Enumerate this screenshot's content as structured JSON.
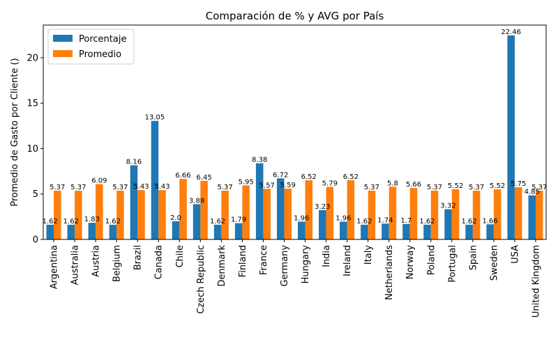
{
  "chart_data": {
    "type": "bar",
    "title": "Comparación de % y AVG por País",
    "xlabel": "",
    "ylabel": "Promedio de Gasto por Cliente ()",
    "ylim": [
      0,
      23.6
    ],
    "yticks": [
      0,
      5,
      10,
      15,
      20
    ],
    "grid": false,
    "legend_position": "top-left",
    "categories": [
      "Argentina",
      "Australia",
      "Austria",
      "Belgium",
      "Brazil",
      "Canada",
      "Chile",
      "Czech Republic",
      "Denmark",
      "Finland",
      "France",
      "Germany",
      "Hungary",
      "India",
      "Ireland",
      "Italy",
      "Netherlands",
      "Norway",
      "Poland",
      "Portugal",
      "Spain",
      "Sweden",
      "USA",
      "United Kingdom"
    ],
    "series": [
      {
        "name": "Porcentaje",
        "color": "#1f77b4",
        "values": [
          1.62,
          1.62,
          1.83,
          1.62,
          8.16,
          13.05,
          2.0,
          3.88,
          1.62,
          1.79,
          8.38,
          6.72,
          1.96,
          3.23,
          1.96,
          1.62,
          1.74,
          1.7,
          1.62,
          3.32,
          1.62,
          1.66,
          22.46,
          4.85
        ],
        "labels": [
          "1.62",
          "1.62",
          "1.83",
          "1.62",
          "8.16",
          "13.05",
          "2.0",
          "3.88",
          "1.62",
          "1.79",
          "8.38",
          "6.72",
          "1.96",
          "3.23",
          "1.96",
          "1.62",
          "1.74",
          "1.7",
          "1.62",
          "3.32",
          "1.62",
          "1.66",
          "22.46",
          "4.85"
        ]
      },
      {
        "name": "Promedio",
        "color": "#ff7f0e",
        "values": [
          5.37,
          5.37,
          6.09,
          5.37,
          5.43,
          5.43,
          6.66,
          6.45,
          5.37,
          5.95,
          5.57,
          5.59,
          6.52,
          5.79,
          6.52,
          5.37,
          5.8,
          5.66,
          5.37,
          5.52,
          5.37,
          5.52,
          5.75,
          5.37
        ],
        "labels": [
          "5.37",
          "5.37",
          "6.09",
          "5.37",
          "5.43",
          "5.43",
          "6.66",
          "6.45",
          "5.37",
          "5.95",
          "5.57",
          "5.59",
          "6.52",
          "5.79",
          "6.52",
          "5.37",
          "5.8",
          "5.66",
          "5.37",
          "5.52",
          "5.37",
          "5.52",
          "5.75",
          "5.37"
        ]
      }
    ]
  }
}
